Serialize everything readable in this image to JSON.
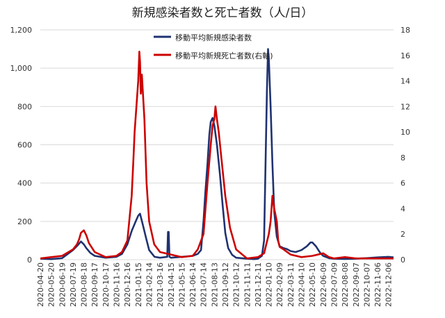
{
  "chart_data": {
    "type": "line",
    "title": "新規感染者数と死亡者数（人/日）",
    "x_categories": [
      "2020-04-20",
      "2020-05-20",
      "2020-06-19",
      "2020-07-19",
      "2020-08-18",
      "2020-09-17",
      "2020-10-17",
      "2020-11-16",
      "2020-12-16",
      "2021-01-15",
      "2021-02-14",
      "2021-03-16",
      "2021-04-15",
      "2021-05-15",
      "2021-06-14",
      "2021-07-14",
      "2021-08-13",
      "2021-09-12",
      "2021-10-12",
      "2021-11-11",
      "2021-12-11",
      "2022-01-10",
      "2022-02-09",
      "2022-03-11",
      "2022-04-10",
      "2022-05-10",
      "2022-06-09",
      "2022-07-09",
      "2022-08-08",
      "2022-09-07",
      "2022-10-07",
      "2022-11-06",
      "2022-12-06"
    ],
    "y_left": {
      "min": 0,
      "max": 1200,
      "ticks": [
        0,
        200,
        400,
        600,
        800,
        1000,
        1200
      ],
      "tick_labels": [
        "0",
        "200",
        "400",
        "600",
        "800",
        "1,000",
        "1,200"
      ]
    },
    "y_right": {
      "min": 0,
      "max": 18,
      "ticks": [
        0,
        2,
        4,
        6,
        8,
        10,
        12,
        14,
        16,
        18
      ],
      "tick_labels": [
        "0",
        "2",
        "4",
        "6",
        "8",
        "10",
        "12",
        "14",
        "16",
        "18"
      ]
    },
    "grid": true,
    "legend_position": "top-center",
    "series": [
      {
        "name": "移動平均新規感染者数",
        "axis": "left",
        "color": "#1f3270",
        "points": [
          [
            "2020-04-20",
            5
          ],
          [
            "2020-05-20",
            3
          ],
          [
            "2020-06-19",
            8
          ],
          [
            "2020-07-19",
            50
          ],
          [
            "2020-08-01",
            75
          ],
          [
            "2020-08-10",
            95
          ],
          [
            "2020-08-18",
            80
          ],
          [
            "2020-08-25",
            60
          ],
          [
            "2020-09-05",
            35
          ],
          [
            "2020-09-17",
            20
          ],
          [
            "2020-10-17",
            10
          ],
          [
            "2020-11-16",
            15
          ],
          [
            "2020-12-01",
            30
          ],
          [
            "2020-12-16",
            80
          ],
          [
            "2020-12-28",
            150
          ],
          [
            "2021-01-08",
            200
          ],
          [
            "2021-01-15",
            230
          ],
          [
            "2021-01-20",
            240
          ],
          [
            "2021-01-28",
            180
          ],
          [
            "2021-02-06",
            110
          ],
          [
            "2021-02-14",
            50
          ],
          [
            "2021-03-01",
            15
          ],
          [
            "2021-03-16",
            10
          ],
          [
            "2021-04-05",
            15
          ],
          [
            "2021-04-07",
            145
          ],
          [
            "2021-04-09",
            145
          ],
          [
            "2021-04-11",
            15
          ],
          [
            "2021-04-15",
            10
          ],
          [
            "2021-05-15",
            15
          ],
          [
            "2021-06-14",
            20
          ],
          [
            "2021-06-28",
            30
          ],
          [
            "2021-07-07",
            50
          ],
          [
            "2021-07-14",
            200
          ],
          [
            "2021-07-19",
            350
          ],
          [
            "2021-07-25",
            500
          ],
          [
            "2021-07-30",
            650
          ],
          [
            "2021-08-03",
            720
          ],
          [
            "2021-08-08",
            740
          ],
          [
            "2021-08-13",
            700
          ],
          [
            "2021-08-20",
            600
          ],
          [
            "2021-08-28",
            450
          ],
          [
            "2021-09-05",
            280
          ],
          [
            "2021-09-12",
            140
          ],
          [
            "2021-09-20",
            60
          ],
          [
            "2021-10-01",
            25
          ],
          [
            "2021-10-12",
            10
          ],
          [
            "2021-11-11",
            5
          ],
          [
            "2021-12-01",
            3
          ],
          [
            "2021-12-11",
            5
          ],
          [
            "2021-12-22",
            20
          ],
          [
            "2021-12-28",
            100
          ],
          [
            "2022-01-01",
            500
          ],
          [
            "2022-01-05",
            900
          ],
          [
            "2022-01-08",
            1100
          ],
          [
            "2022-01-10",
            1050
          ],
          [
            "2022-01-15",
            800
          ],
          [
            "2022-01-20",
            500
          ],
          [
            "2022-01-25",
            250
          ],
          [
            "2022-02-01",
            120
          ],
          [
            "2022-02-09",
            70
          ],
          [
            "2022-02-20",
            60
          ],
          [
            "2022-03-01",
            55
          ],
          [
            "2022-03-11",
            45
          ],
          [
            "2022-03-25",
            40
          ],
          [
            "2022-04-10",
            50
          ],
          [
            "2022-04-25",
            70
          ],
          [
            "2022-05-05",
            90
          ],
          [
            "2022-05-10",
            90
          ],
          [
            "2022-05-20",
            70
          ],
          [
            "2022-06-01",
            35
          ],
          [
            "2022-06-09",
            20
          ],
          [
            "2022-06-25",
            8
          ],
          [
            "2022-07-09",
            5
          ],
          [
            "2022-08-08",
            4
          ],
          [
            "2022-09-07",
            5
          ],
          [
            "2022-10-07",
            8
          ],
          [
            "2022-11-06",
            12
          ],
          [
            "2022-12-06",
            15
          ],
          [
            "2022-12-20",
            12
          ]
        ]
      },
      {
        "name": "移動平均新規死亡者数(右軸)",
        "axis": "right",
        "color": "#cc0000",
        "points": [
          [
            "2020-04-20",
            0.1
          ],
          [
            "2020-05-20",
            0.2
          ],
          [
            "2020-06-19",
            0.3
          ],
          [
            "2020-07-19",
            0.8
          ],
          [
            "2020-07-30",
            1.2
          ],
          [
            "2020-08-05",
            1.6
          ],
          [
            "2020-08-10",
            2.1
          ],
          [
            "2020-08-18",
            2.3
          ],
          [
            "2020-08-25",
            1.9
          ],
          [
            "2020-09-01",
            1.3
          ],
          [
            "2020-09-17",
            0.6
          ],
          [
            "2020-10-17",
            0.2
          ],
          [
            "2020-11-16",
            0.3
          ],
          [
            "2020-12-01",
            0.6
          ],
          [
            "2020-12-16",
            1.5
          ],
          [
            "2020-12-28",
            5
          ],
          [
            "2021-01-02",
            8
          ],
          [
            "2021-01-05",
            10
          ],
          [
            "2021-01-10",
            12
          ],
          [
            "2021-01-15",
            14
          ],
          [
            "2021-01-18",
            16.3
          ],
          [
            "2021-01-20",
            15.5
          ],
          [
            "2021-01-22",
            13
          ],
          [
            "2021-01-25",
            14.5
          ],
          [
            "2021-02-01",
            11
          ],
          [
            "2021-02-07",
            6
          ],
          [
            "2021-02-14",
            3
          ],
          [
            "2021-02-28",
            1.2
          ],
          [
            "2021-03-16",
            0.6
          ],
          [
            "2021-04-15",
            0.4
          ],
          [
            "2021-05-15",
            0.2
          ],
          [
            "2021-06-14",
            0.3
          ],
          [
            "2021-06-28",
            0.8
          ],
          [
            "2021-07-14",
            2
          ],
          [
            "2021-07-25",
            6
          ],
          [
            "2021-08-03",
            9
          ],
          [
            "2021-08-08",
            10.5
          ],
          [
            "2021-08-13",
            11
          ],
          [
            "2021-08-16",
            12
          ],
          [
            "2021-08-20",
            11
          ],
          [
            "2021-08-25",
            10
          ],
          [
            "2021-09-01",
            8
          ],
          [
            "2021-09-12",
            5
          ],
          [
            "2021-09-25",
            2.5
          ],
          [
            "2021-10-12",
            0.8
          ],
          [
            "2021-11-11",
            0.1
          ],
          [
            "2021-12-11",
            0.2
          ],
          [
            "2021-12-28",
            0.5
          ],
          [
            "2022-01-10",
            2
          ],
          [
            "2022-01-15",
            3
          ],
          [
            "2022-01-20",
            5
          ],
          [
            "2022-01-25",
            4
          ],
          [
            "2022-02-01",
            3
          ],
          [
            "2022-02-05",
            1.5
          ],
          [
            "2022-02-09",
            1
          ],
          [
            "2022-02-20",
            0.8
          ],
          [
            "2022-03-11",
            0.4
          ],
          [
            "2022-04-10",
            0.2
          ],
          [
            "2022-05-10",
            0.3
          ],
          [
            "2022-06-09",
            0.5
          ],
          [
            "2022-06-25",
            0.2
          ],
          [
            "2022-07-09",
            0.1
          ],
          [
            "2022-08-08",
            0.2
          ],
          [
            "2022-09-07",
            0.1
          ],
          [
            "2022-10-07",
            0.1
          ],
          [
            "2022-11-06",
            0.1
          ],
          [
            "2022-12-06",
            0.1
          ],
          [
            "2022-12-20",
            0.1
          ]
        ]
      }
    ]
  }
}
